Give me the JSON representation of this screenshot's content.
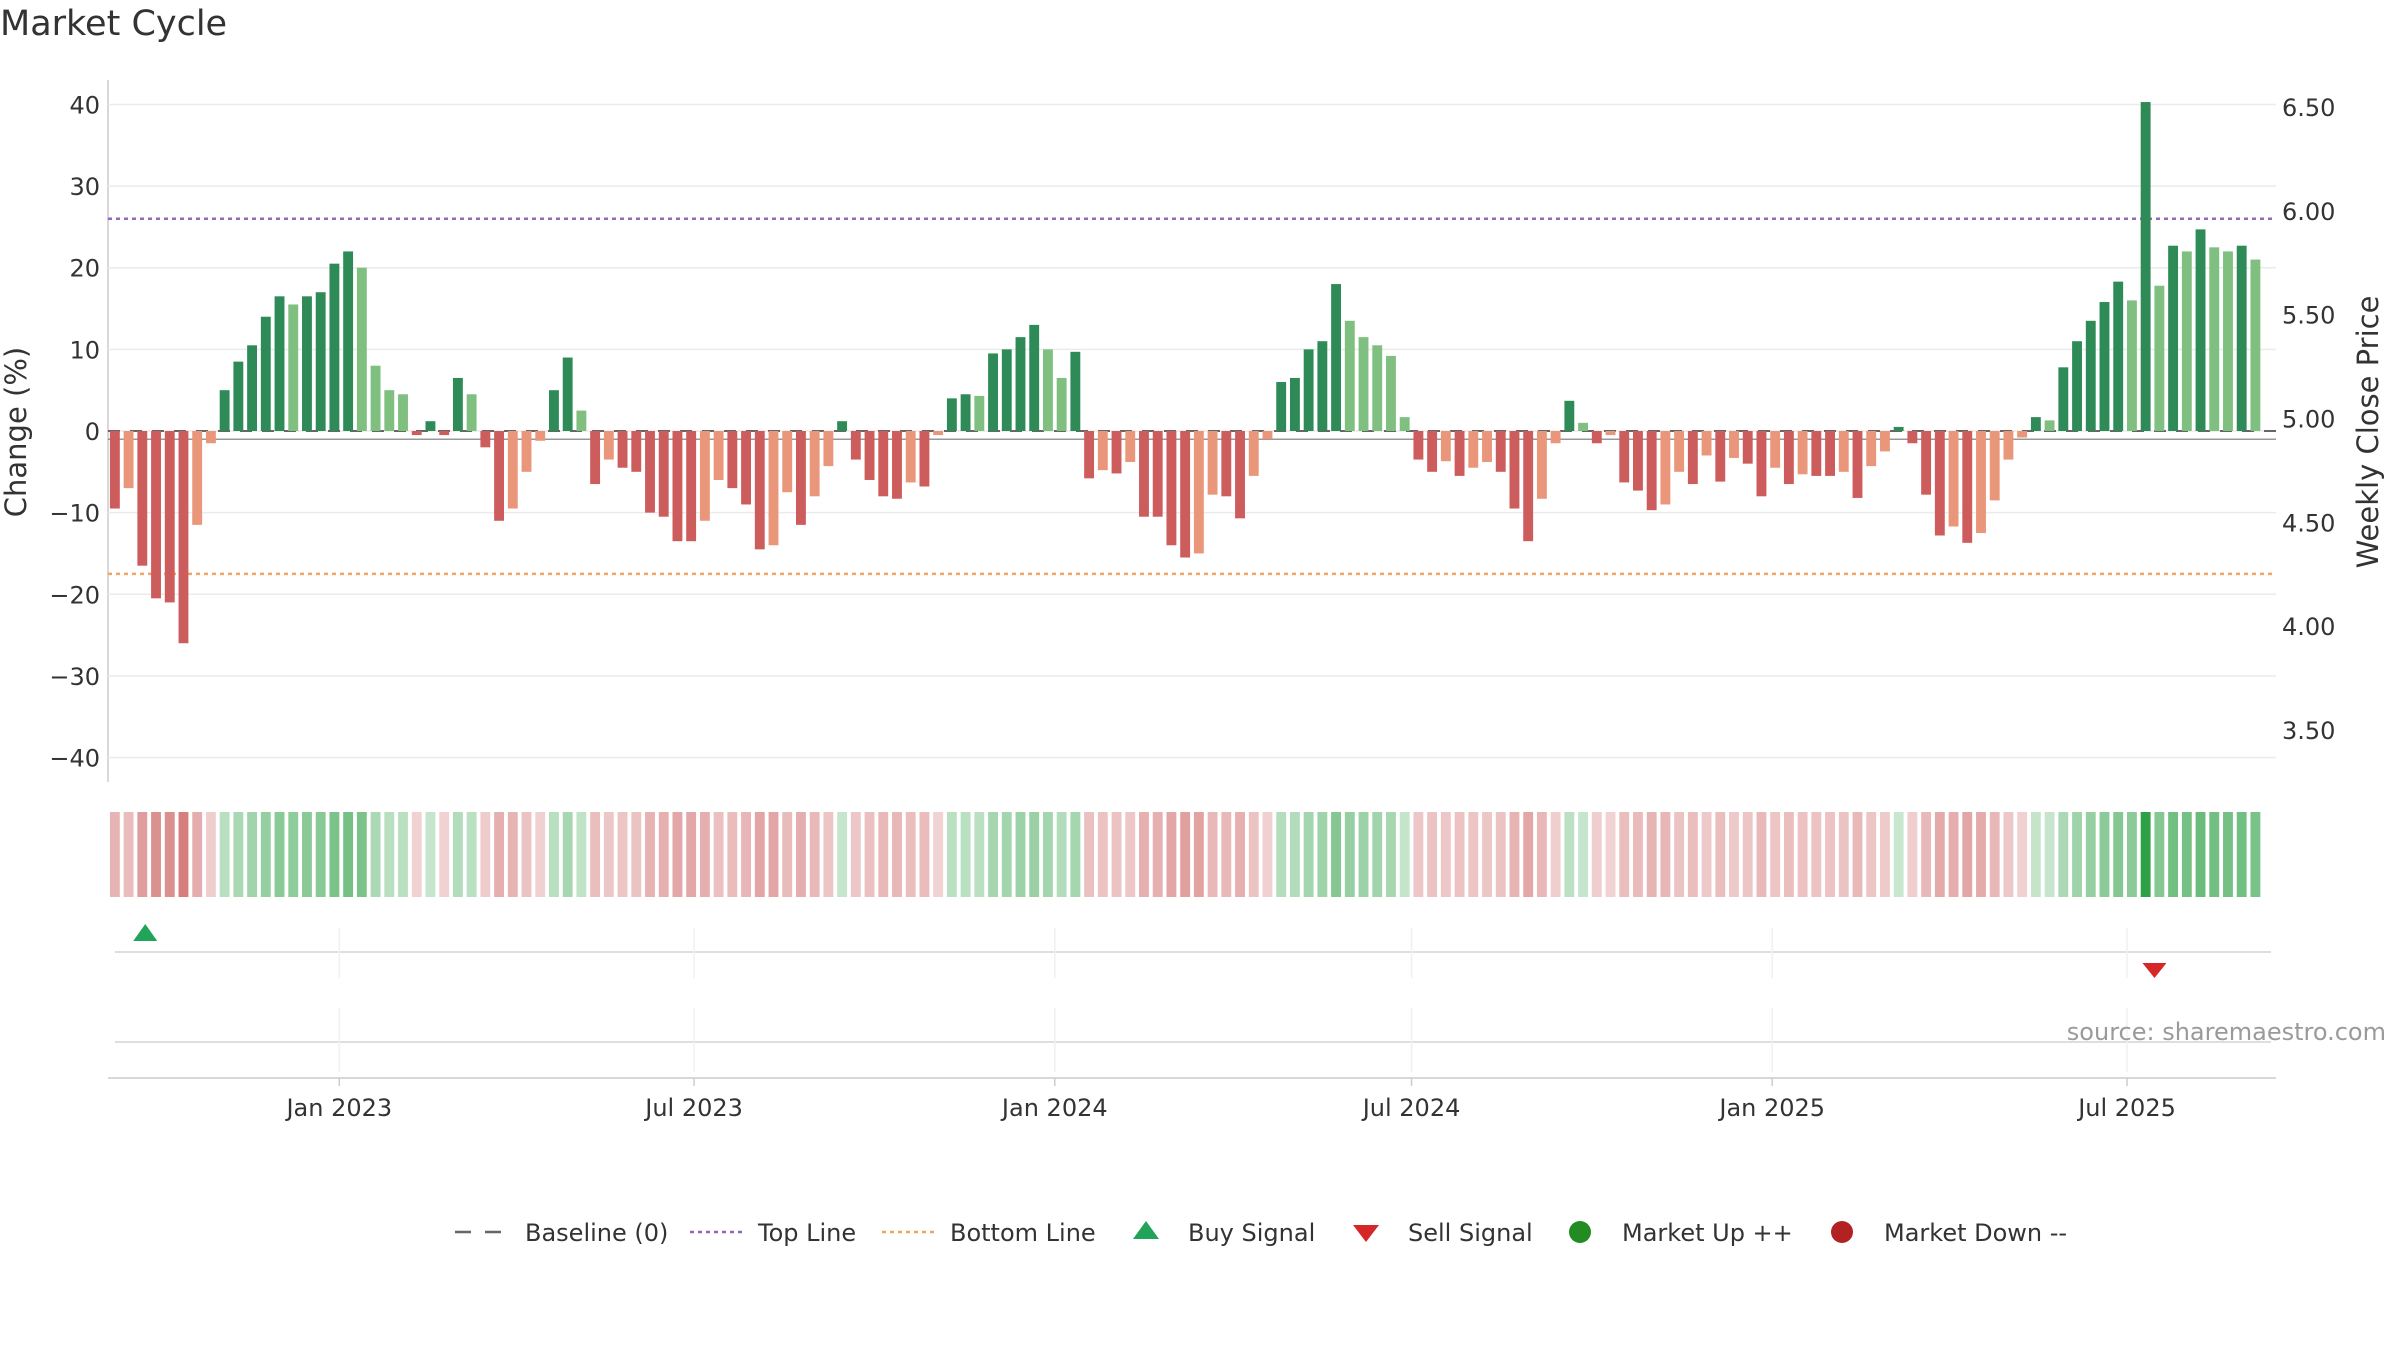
{
  "chart_data": {
    "type": "bar",
    "title": "Market Cycle",
    "ylabel": "Change (%)",
    "y2label": "Weekly Close Price",
    "ylim": [
      -43,
      43
    ],
    "yticks": [
      40,
      30,
      20,
      10,
      0,
      -10,
      -20,
      -30,
      -40
    ],
    "ytick_labels": [
      "40",
      "30",
      "20",
      "10",
      "0",
      "−10",
      "−20",
      "−30",
      "−40"
    ],
    "y2lim": [
      3.25,
      6.63
    ],
    "y2ticks": [
      6.5,
      6.0,
      5.5,
      5.0,
      4.5,
      4.0,
      3.5
    ],
    "y2tick_labels": [
      "6.50",
      "6.00",
      "5.50",
      "5.00",
      "4.50",
      "4.00",
      "3.50"
    ],
    "x_start": "2022-09-05",
    "x_end": "2025-09-15",
    "week_start": "2022-09-05",
    "xticks": [
      {
        "date": "2023-01-01",
        "label": "Jan 2023"
      },
      {
        "date": "2023-07-01",
        "label": "Jul 2023"
      },
      {
        "date": "2024-01-01",
        "label": "Jan 2024"
      },
      {
        "date": "2024-07-01",
        "label": "Jul 2024"
      },
      {
        "date": "2025-01-01",
        "label": "Jan 2025"
      },
      {
        "date": "2025-07-01",
        "label": "Jul 2025"
      }
    ],
    "values": [
      -9.5,
      -7,
      -16.5,
      -20.5,
      -21,
      -26,
      -11.5,
      -1.5,
      5,
      8.5,
      10.5,
      14,
      16.5,
      15.5,
      16.5,
      17,
      20.5,
      22,
      20,
      8,
      5,
      4.5,
      -0.5,
      1.2,
      -0.5,
      6.5,
      4.5,
      -2,
      -11,
      -9.5,
      -5,
      -1.2,
      5,
      9,
      2.5,
      -6.5,
      -3.5,
      -4.5,
      -5,
      -10,
      -10.5,
      -13.5,
      -13.5,
      -11,
      -6,
      -7,
      -9,
      -14.5,
      -14,
      -7.5,
      -11.5,
      -8,
      -4.3,
      1.2,
      -3.5,
      -6,
      -8,
      -8.3,
      -6.3,
      -6.8,
      -0.5,
      4,
      4.5,
      4.3,
      9.5,
      10,
      11.5,
      13,
      10,
      6.5,
      9.7,
      -5.8,
      -4.8,
      -5.2,
      -3.8,
      -10.5,
      -10.5,
      -14,
      -15.5,
      -15,
      -7.8,
      -8,
      -10.7,
      -5.5,
      -1,
      6,
      6.5,
      10,
      11,
      18,
      13.5,
      11.5,
      10.5,
      9.2,
      1.7,
      -3.5,
      -5,
      -3.7,
      -5.5,
      -4.5,
      -3.8,
      -5,
      -9.5,
      -13.5,
      -8.3,
      -1.5,
      3.7,
      1,
      -1.5,
      -0.5,
      -6.3,
      -7.3,
      -9.7,
      -9,
      -5,
      -6.5,
      -3,
      -6.2,
      -3.3,
      -4,
      -8,
      -4.5,
      -6.5,
      -5.3,
      -5.5,
      -5.5,
      -5,
      -8.2,
      -4.3,
      -2.5,
      0.5,
      -1.5,
      -7.8,
      -12.8,
      -11.7,
      -13.7,
      -12.5,
      -8.5,
      -3.5,
      -0.8,
      1.7,
      1.3,
      7.8,
      11,
      13.5,
      15.8,
      18.3,
      16,
      40.3,
      17.8,
      22.7,
      22,
      24.7,
      22.5,
      22,
      22.7,
      21
    ],
    "top_line": 26,
    "bottom_line": -17.5,
    "price_min": 4.89,
    "price_max": 4.91,
    "signals": [
      {
        "type": "buy",
        "date": "2022-09-24"
      },
      {
        "type": "sell",
        "date": "2025-07-15"
      }
    ],
    "legend": [
      {
        "key": "baseline",
        "label": "Baseline (0)"
      },
      {
        "key": "topline",
        "label": "Top Line"
      },
      {
        "key": "bottomline",
        "label": "Bottom Line"
      },
      {
        "key": "buy",
        "label": "Buy Signal"
      },
      {
        "key": "sell",
        "label": "Sell Signal"
      },
      {
        "key": "mup",
        "label": "Market Up ++"
      },
      {
        "key": "mdown",
        "label": "Market Down --"
      }
    ],
    "colors": {
      "up_strong": "#2e8b57",
      "up_light": "#7fbf7f",
      "down_strong": "#cd5c5c",
      "down_light": "#e9967a",
      "top_line": "#9467bd",
      "bottom_line": "#f4a460",
      "baseline": "#666666",
      "buy": "#22a35a",
      "sell": "#d62728",
      "market_up": "#228b22",
      "market_down": "#b22222"
    }
  },
  "source": "source: sharemaestro.com"
}
